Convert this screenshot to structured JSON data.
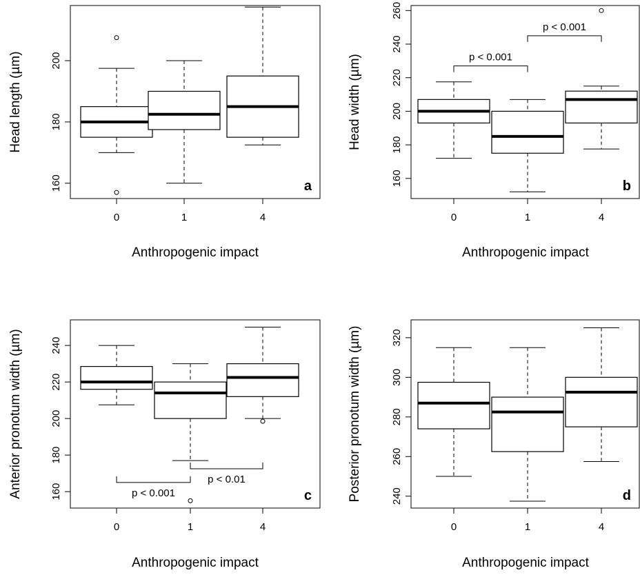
{
  "chart_data": [
    {
      "type": "box",
      "panel_label": "a",
      "xlabel": "Anthropogenic impact",
      "ylabel": "Head length (µm)",
      "categories": [
        "0",
        "1",
        "4"
      ],
      "ylim": [
        155,
        218
      ],
      "yticks": [
        160,
        180,
        200
      ],
      "boxes": [
        {
          "whisker_low": 170,
          "q1": 175,
          "median": 180,
          "q3": 185,
          "whisker_high": 197.5,
          "outliers": [
            157,
            207.5
          ]
        },
        {
          "whisker_low": 160,
          "q1": 177.5,
          "median": 182.5,
          "q3": 190,
          "whisker_high": 200,
          "outliers": []
        },
        {
          "whisker_low": 172.5,
          "q1": 175,
          "median": 185,
          "q3": 195,
          "whisker_high": 217.5,
          "outliers": []
        }
      ],
      "annotations": []
    },
    {
      "type": "box",
      "panel_label": "b",
      "xlabel": "Anthropogenic impact",
      "ylabel": "Head width (µm)",
      "categories": [
        "0",
        "1",
        "4"
      ],
      "ylim": [
        148,
        263
      ],
      "yticks": [
        160,
        180,
        200,
        220,
        240,
        260
      ],
      "boxes": [
        {
          "whisker_low": 172,
          "q1": 193,
          "median": 200,
          "q3": 207,
          "whisker_high": 217.5,
          "outliers": []
        },
        {
          "whisker_low": 152,
          "q1": 175,
          "median": 185,
          "q3": 200,
          "whisker_high": 207,
          "outliers": []
        },
        {
          "whisker_low": 177.5,
          "q1": 193,
          "median": 207,
          "q3": 212,
          "whisker_high": 215,
          "outliers": [
            260
          ]
        }
      ],
      "annotations": [
        {
          "from": 0,
          "to": 1,
          "y": 227,
          "direction": "down",
          "text": "p < 0.001"
        },
        {
          "from": 1,
          "to": 2,
          "y": 245,
          "direction": "down",
          "text": "p < 0.001"
        }
      ]
    },
    {
      "type": "box",
      "panel_label": "c",
      "xlabel": "Anthropogenic impact",
      "ylabel": "Anterior pronotum width (µm)",
      "categories": [
        "0",
        "1",
        "4"
      ],
      "ylim": [
        151,
        254
      ],
      "yticks": [
        160,
        180,
        200,
        220,
        240
      ],
      "boxes": [
        {
          "whisker_low": 207.5,
          "q1": 216,
          "median": 220,
          "q3": 228.5,
          "whisker_high": 240,
          "outliers": []
        },
        {
          "whisker_low": 177,
          "q1": 200,
          "median": 214,
          "q3": 220,
          "whisker_high": 230,
          "outliers": [
            155
          ]
        },
        {
          "whisker_low": 200,
          "q1": 212,
          "median": 222.5,
          "q3": 230,
          "whisker_high": 250,
          "outliers": [
            198.5
          ]
        }
      ],
      "annotations": [
        {
          "from": 0,
          "to": 1,
          "y": 165,
          "direction": "up",
          "text": "p < 0.001"
        },
        {
          "from": 1,
          "to": 2,
          "y": 172.5,
          "direction": "up",
          "text": "p < 0.01"
        }
      ]
    },
    {
      "type": "box",
      "panel_label": "d",
      "xlabel": "Anthropogenic impact",
      "ylabel": "Posterior pronotum width (µm)",
      "categories": [
        "0",
        "1",
        "4"
      ],
      "ylim": [
        234,
        329
      ],
      "yticks": [
        240,
        260,
        280,
        300,
        320
      ],
      "boxes": [
        {
          "whisker_low": 250,
          "q1": 274,
          "median": 287,
          "q3": 297.5,
          "whisker_high": 315,
          "outliers": []
        },
        {
          "whisker_low": 237.5,
          "q1": 262.5,
          "median": 282.5,
          "q3": 290,
          "whisker_high": 315,
          "outliers": []
        },
        {
          "whisker_low": 257.5,
          "q1": 275,
          "median": 292.5,
          "q3": 300,
          "whisker_high": 325,
          "outliers": []
        }
      ],
      "annotations": []
    }
  ]
}
